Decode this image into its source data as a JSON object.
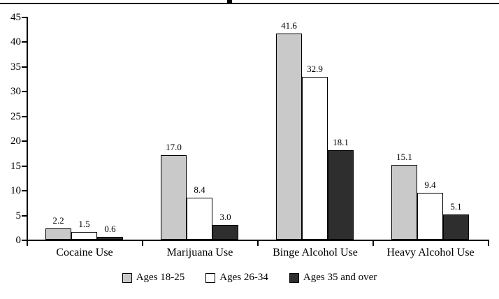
{
  "chart_data": {
    "type": "bar",
    "title": "",
    "xlabel": "",
    "ylabel": "",
    "categories": [
      "Cocaine Use",
      "Marijuana Use",
      "Binge Alcohol Use",
      "Heavy Alcohol Use"
    ],
    "series": [
      {
        "name": "Ages 18-25",
        "color": "#c9c9c9",
        "values": [
          2.2,
          17.0,
          41.6,
          15.1
        ]
      },
      {
        "name": "Ages 26-34",
        "color": "#ffffff",
        "values": [
          1.5,
          8.4,
          32.9,
          9.4
        ]
      },
      {
        "name": "Ages 35 and over",
        "color": "#2e2e2e",
        "values": [
          0.6,
          3.0,
          18.1,
          5.1
        ]
      }
    ],
    "y_ticks": [
      0,
      5,
      10,
      15,
      20,
      25,
      30,
      35,
      40,
      45
    ],
    "ylim": [
      0,
      45
    ],
    "grid": false,
    "legend_position": "bottom",
    "value_labels": "one-decimal",
    "bar_border_color": "#000000",
    "axis_color": "#000000"
  }
}
